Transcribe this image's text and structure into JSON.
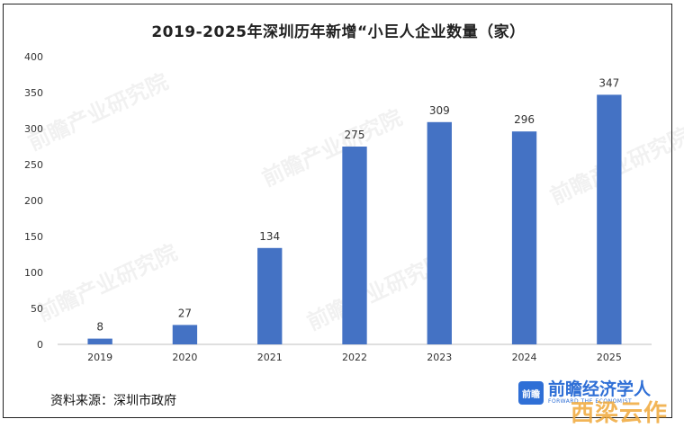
{
  "chart_data": {
    "type": "bar",
    "title": "2019-2025年深圳历年新增“小巨人企业数量（家）",
    "categories": [
      "2019",
      "2020",
      "2021",
      "2022",
      "2023",
      "2024",
      "2025"
    ],
    "values": [
      8,
      27,
      134,
      275,
      309,
      296,
      347
    ],
    "yticks": [
      0,
      50,
      100,
      150,
      200,
      250,
      300,
      350,
      400
    ],
    "ylim": [
      0,
      400
    ],
    "xlabel": "",
    "ylabel": "",
    "grid": false,
    "bar_color": "#4472c4"
  },
  "source": "资料来源：深圳市政府",
  "branding": {
    "logo_badge": "前瞻",
    "logo_text": "前瞻经济学人",
    "logo_sub": "FORWARD THE ECONOMIST",
    "corner_mark": "西梁云作",
    "watermark": "前瞻产业研究院"
  }
}
